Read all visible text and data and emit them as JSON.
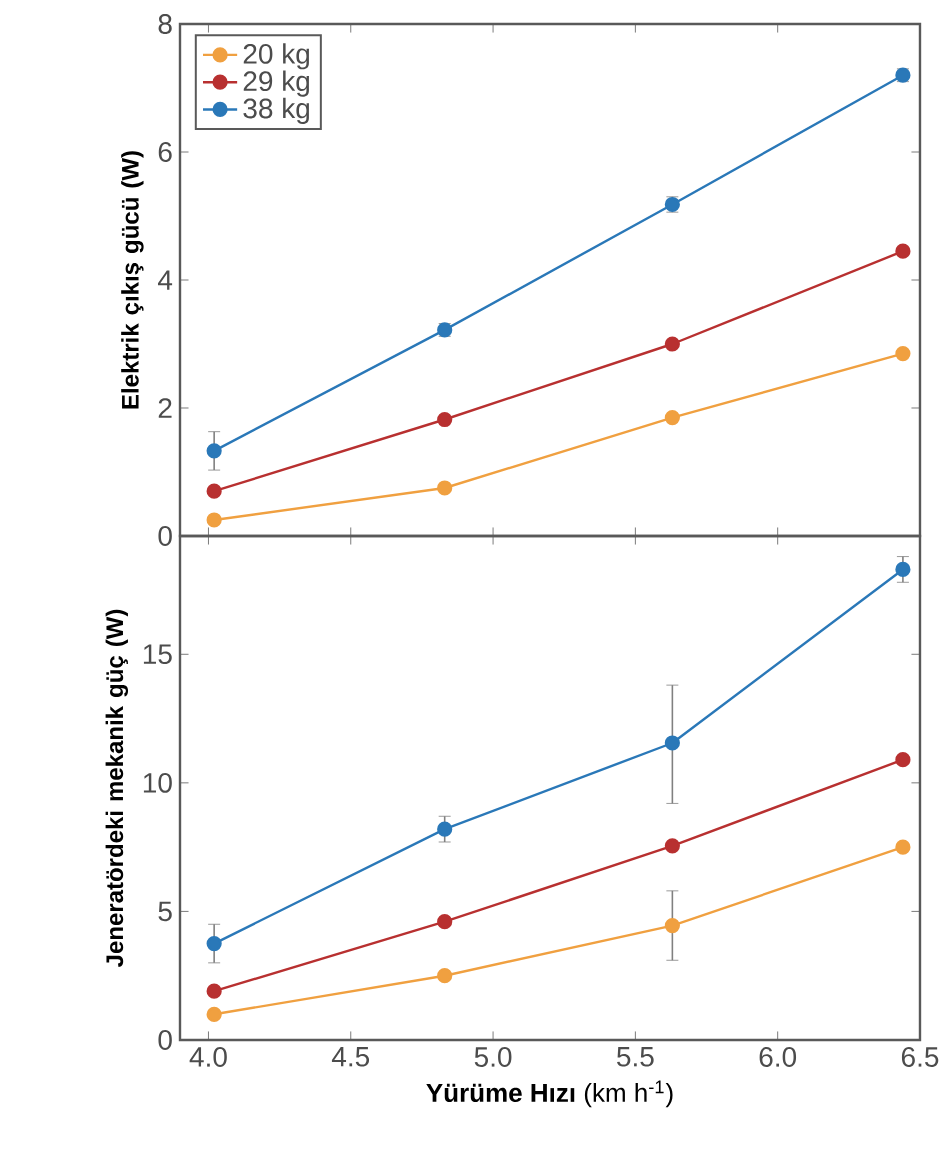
{
  "chart_data": [
    {
      "type": "line",
      "ylabel": "Elektrik çıkış gücü (W)",
      "x": [
        4.02,
        4.83,
        5.63,
        6.44
      ],
      "series": [
        {
          "name": "20 kg",
          "color": "#f0a040",
          "values": [
            0.25,
            0.75,
            1.85,
            2.85
          ]
        },
        {
          "name": "29 kg",
          "color": "#b83030",
          "values": [
            0.7,
            1.82,
            3.0,
            4.45
          ]
        },
        {
          "name": "38 kg",
          "color": "#2a78b8",
          "values": [
            1.33,
            3.22,
            5.18,
            7.2
          ],
          "errors": [
            0.3,
            0.1,
            0.12,
            0.1
          ]
        }
      ],
      "xlim": [
        3.9,
        6.5
      ],
      "xticks": [
        4,
        4.5,
        5,
        5.5,
        6,
        6.5
      ],
      "ylim": [
        0,
        8
      ],
      "yticks": [
        0,
        2,
        4,
        6,
        8
      ],
      "tick_labels": "y",
      "legend": "top left",
      "marker": "circle",
      "line_style": "solid"
    },
    {
      "type": "line",
      "ylabel": "Jeneratördeki mekanik güç (W)",
      "xlabel": "**Yürüme Hızı** (km h$^{-1}$)",
      "x": [
        4.02,
        4.83,
        5.63,
        6.44
      ],
      "series": [
        {
          "color": "#f0a040",
          "values": [
            1.0,
            2.5,
            4.45,
            7.5
          ],
          "errors": [
            null,
            null,
            [
              3.1,
              5.8
            ],
            null
          ]
        },
        {
          "color": "#b83030",
          "values": [
            1.9,
            4.6,
            7.55,
            10.9
          ]
        },
        {
          "color": "#2a78b8",
          "values": [
            3.75,
            8.2,
            11.55,
            18.3
          ],
          "errors": [
            0.75,
            0.5,
            [
              9.2,
              13.8
            ],
            0.5
          ]
        }
      ],
      "xlim": [
        3.9,
        6.5
      ],
      "xticks": [
        {
          "value": 4,
          "label": "4.0"
        },
        4.5,
        {
          "value": 5,
          "label": "5.0"
        },
        5.5,
        {
          "value": 6,
          "label": "6.0"
        },
        6.5
      ],
      "ylim": [
        0,
        19.6
      ],
      "yticks": [
        0,
        5,
        10,
        15
      ],
      "marker": "circle",
      "line_style": "solid"
    }
  ]
}
